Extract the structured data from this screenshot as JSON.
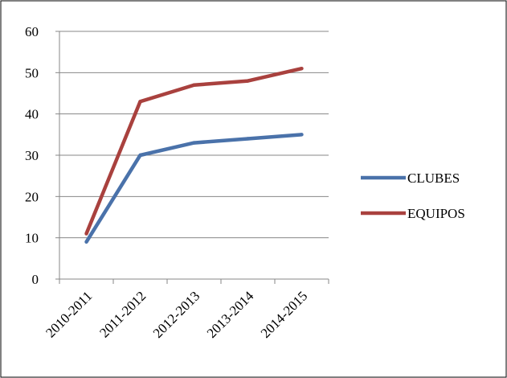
{
  "chart_data": {
    "type": "line",
    "categories": [
      "2010-2011",
      "2011-2012",
      "2012-2013",
      "2013-2014",
      "2014-2015"
    ],
    "series": [
      {
        "name": "CLUBES",
        "values": [
          9,
          30,
          33,
          34,
          35
        ],
        "color": "#4a72aa"
      },
      {
        "name": "EQUIPOS",
        "values": [
          11,
          43,
          47,
          48,
          51
        ],
        "color": "#a9413e"
      }
    ],
    "ylim": [
      0,
      60
    ],
    "yticks": [
      0,
      10,
      20,
      30,
      40,
      50,
      60
    ],
    "grid": true,
    "legend_position": "right",
    "title": "",
    "xlabel": "",
    "ylabel": ""
  }
}
